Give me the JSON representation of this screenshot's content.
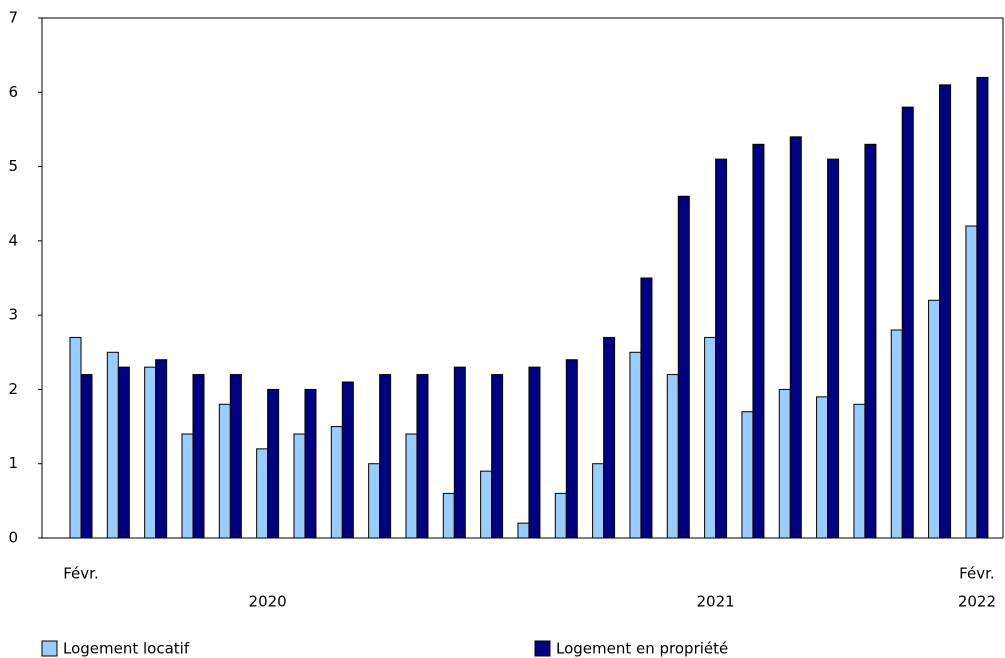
{
  "chart_data": {
    "type": "bar",
    "categories": [
      "Févr.",
      null,
      null,
      null,
      null,
      null,
      null,
      null,
      null,
      null,
      null,
      null,
      null,
      null,
      null,
      null,
      null,
      null,
      null,
      null,
      null,
      null,
      null,
      null,
      "Févr."
    ],
    "categories2": [
      null,
      null,
      null,
      null,
      null,
      "2020",
      null,
      null,
      null,
      null,
      null,
      null,
      null,
      null,
      null,
      null,
      null,
      "2021",
      null,
      null,
      null,
      null,
      null,
      null,
      "2022"
    ],
    "series": [
      {
        "name": "Logement locatif",
        "color": "#99ccff",
        "values": [
          2.7,
          2.5,
          2.3,
          1.4,
          1.8,
          1.2,
          1.4,
          1.5,
          1.0,
          1.4,
          0.6,
          0.9,
          0.2,
          0.6,
          1.0,
          2.5,
          2.2,
          2.7,
          1.7,
          2.0,
          1.9,
          1.8,
          2.8,
          3.2,
          4.2
        ]
      },
      {
        "name": "Logement en propriété",
        "color": "#000080",
        "values": [
          2.2,
          2.3,
          2.4,
          2.2,
          2.2,
          2.0,
          2.0,
          2.1,
          2.2,
          2.2,
          2.3,
          2.2,
          2.3,
          2.4,
          2.7,
          3.5,
          4.6,
          5.1,
          5.3,
          5.4,
          5.1,
          5.3,
          5.8,
          6.1,
          6.2
        ]
      }
    ],
    "ylim": [
      0,
      7
    ],
    "yticks": [
      0,
      1,
      2,
      3,
      4,
      5,
      6,
      7
    ],
    "grid": false,
    "legend": "bottom"
  }
}
